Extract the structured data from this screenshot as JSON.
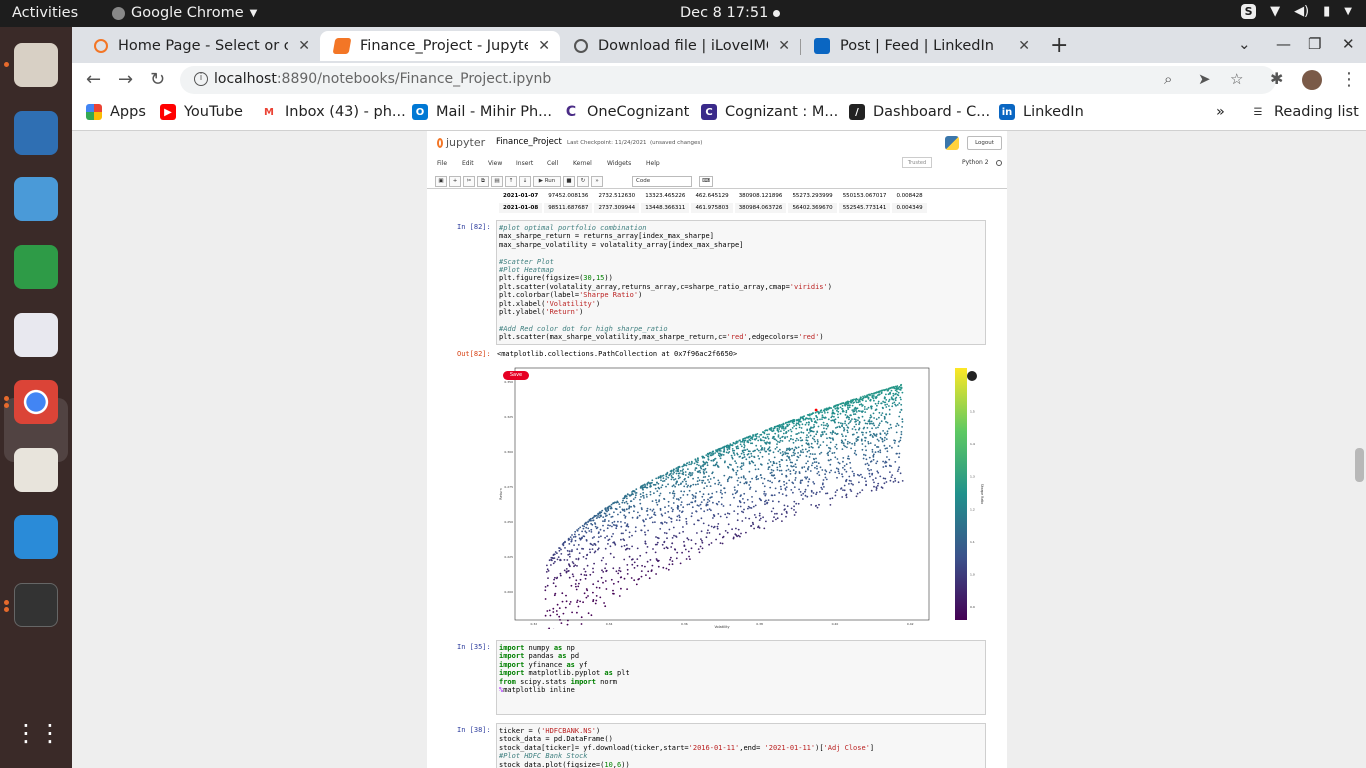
{
  "system": {
    "activities": "Activities",
    "app_name": "Google Chrome",
    "clock": "Dec 8  17:51"
  },
  "browser": {
    "tabs": [
      {
        "title": "Home Page - Select or cre",
        "active": false
      },
      {
        "title": "Finance_Project - Jupyter",
        "active": true
      },
      {
        "title": "Download file | iLoveIMG",
        "active": false
      },
      {
        "title": "Post | Feed | LinkedIn",
        "active": false
      }
    ],
    "url_host": "localhost",
    "url_rest": ":8890/notebooks/Finance_Project.ipynb",
    "bookmarks": [
      "Apps",
      "YouTube",
      "Inbox (43) - ph...",
      "Mail - Mihir Ph...",
      "OneCognizant",
      "Cognizant : M...",
      "Dashboard - C...",
      "LinkedIn"
    ],
    "reading_list": "Reading list"
  },
  "notebook": {
    "logo": "jupyter",
    "name": "Finance_Project",
    "checkpoint": "Last Checkpoint: 11/24/2021",
    "unsaved": "(unsaved changes)",
    "logout": "Logout",
    "menu": [
      "File",
      "Edit",
      "View",
      "Insert",
      "Cell",
      "Kernel",
      "Widgets",
      "Help"
    ],
    "trusted": "Trusted",
    "kernel": "Python 2",
    "run_label": "Run",
    "cell_type": "Code",
    "table_rows": [
      [
        "2021-01-07",
        "97452.008136",
        "2732.512630",
        "13323.465226",
        "462.645129",
        "380908.121896",
        "55273.293999",
        "550153.067017",
        "0.008428"
      ],
      [
        "2021-01-08",
        "98511.687687",
        "2737.309944",
        "13448.366311",
        "461.975803",
        "380984.063726",
        "56402.369670",
        "552545.773141",
        "0.004349"
      ]
    ],
    "cells": [
      {
        "prompt": "In [82]:"
      },
      {
        "prompt": "Out[82]:",
        "text": "<matplotlib.collections.PathCollection at 0x7f96ac2f6650>"
      },
      {
        "prompt": "In [35]:"
      },
      {
        "prompt": "In [38]:"
      }
    ],
    "pin_save": "Save"
  },
  "chart_data": {
    "type": "scatter",
    "xlabel": "Volatility",
    "ylabel": "Return",
    "colorbar_label": "Sharpe Ratio",
    "xticks": [
      "0.32",
      "0.34",
      "0.36",
      "0.38",
      "0.40",
      "0.42"
    ],
    "yticks": [
      "0.200",
      "0.225",
      "0.250",
      "0.275",
      "0.300",
      "0.325",
      "0.350"
    ],
    "colorbar_ticks": [
      "0.9",
      "1.0",
      "1.1",
      "1.2",
      "1.3",
      "1.4",
      "1.5",
      "1.6"
    ],
    "xlim": [
      0.315,
      0.425
    ],
    "ylim": [
      0.18,
      0.36
    ],
    "cmap": "viridis",
    "highlight": {
      "x": 0.395,
      "y": 0.33,
      "color": "#ff0000"
    }
  }
}
